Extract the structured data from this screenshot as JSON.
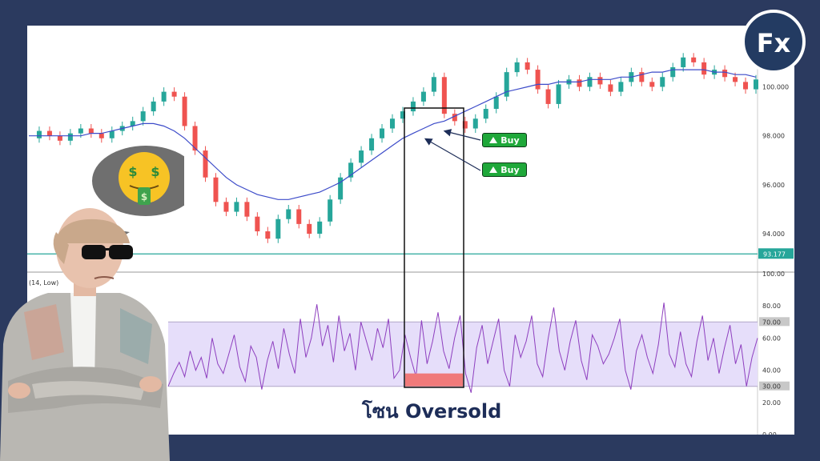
{
  "chart_data": [
    {
      "type": "line",
      "panel": "price",
      "title": "",
      "xlabel": "",
      "ylabel": "",
      "ylim": [
        92.5,
        102.5
      ],
      "y_ticks": [
        "100.000",
        "98.000",
        "96.000",
        "94.000"
      ],
      "y_tick_values": [
        100,
        98,
        96,
        94
      ],
      "series": [
        {
          "kind": "candlestick",
          "color_up": "#26a69a",
          "color_down": "#ef5350",
          "values": [
            97.9,
            98.2,
            98.0,
            97.8,
            98.1,
            98.3,
            98.1,
            97.9,
            98.2,
            98.4,
            98.6,
            99.0,
            99.4,
            99.8,
            99.6,
            98.4,
            97.4,
            96.3,
            95.3,
            94.9,
            95.3,
            94.7,
            94.1,
            93.8,
            94.6,
            95.0,
            94.4,
            94.0,
            94.5,
            95.4,
            96.3,
            96.9,
            97.4,
            97.9,
            98.3,
            98.7,
            99.0,
            99.4,
            99.8,
            100.4,
            98.9,
            98.6,
            98.3,
            98.7,
            99.1,
            99.6,
            100.6,
            101.0,
            100.7,
            99.9,
            99.3,
            100.1,
            100.3,
            100.0,
            100.4,
            100.1,
            99.8,
            100.2,
            100.6,
            100.2,
            100.0,
            100.4,
            100.8,
            101.2,
            101.0,
            100.5,
            100.7,
            100.4,
            100.2,
            99.9,
            100.3
          ]
        },
        {
          "kind": "moving-average",
          "color": "#3c4bc9",
          "values": [
            98.0,
            98.0,
            98.0,
            98.0,
            98.0,
            98.0,
            98.1,
            98.1,
            98.2,
            98.3,
            98.4,
            98.5,
            98.5,
            98.4,
            98.2,
            97.9,
            97.5,
            97.1,
            96.7,
            96.3,
            96.0,
            95.8,
            95.6,
            95.5,
            95.4,
            95.4,
            95.5,
            95.6,
            95.7,
            95.9,
            96.1,
            96.4,
            96.7,
            97.0,
            97.3,
            97.6,
            97.9,
            98.1,
            98.3,
            98.5,
            98.6,
            98.8,
            99.0,
            99.2,
            99.4,
            99.6,
            99.8,
            99.9,
            100.0,
            100.1,
            100.1,
            100.2,
            100.2,
            100.2,
            100.3,
            100.3,
            100.3,
            100.4,
            100.4,
            100.5,
            100.6,
            100.6,
            100.7,
            100.7,
            100.7,
            100.7,
            100.6,
            100.6,
            100.5,
            100.5,
            100.4
          ]
        }
      ],
      "horizontal_line": {
        "value": 93.177,
        "label": "93.177",
        "color": "#26a69a"
      }
    },
    {
      "type": "line",
      "panel": "indicator",
      "title": "",
      "header_label": "(14, Low)",
      "xlabel": "",
      "ylabel": "",
      "ylim": [
        0,
        100
      ],
      "y_ticks": [
        "100.00",
        "80.00",
        "60.00",
        "40.00",
        "20.00",
        "0.00"
      ],
      "y_tick_values": [
        100,
        80,
        60,
        40,
        20,
        0
      ],
      "band": {
        "low": 30,
        "high": 70,
        "low_label": "30.00",
        "high_label": "70.00",
        "color": "#e6defa"
      },
      "series": [
        {
          "color": "#8e3fbf",
          "values": [
            30,
            38,
            45,
            36,
            52,
            40,
            48,
            35,
            60,
            44,
            38,
            50,
            62,
            42,
            33,
            55,
            48,
            28,
            46,
            58,
            41,
            66,
            50,
            38,
            72,
            48,
            60,
            81,
            55,
            68,
            45,
            74,
            52,
            63,
            40,
            70,
            58,
            46,
            66,
            54,
            72,
            35,
            40,
            62,
            48,
            36,
            71,
            44,
            58,
            76,
            52,
            41,
            60,
            74,
            38,
            26,
            54,
            68,
            44,
            58,
            72,
            40,
            30,
            62,
            48,
            58,
            74,
            44,
            36,
            60,
            79,
            52,
            40,
            58,
            71,
            46,
            34,
            62,
            55,
            44,
            50,
            60,
            72,
            40,
            28,
            52,
            62,
            48,
            38,
            56,
            82,
            50,
            42,
            64,
            44,
            36,
            58,
            74,
            46,
            60,
            38,
            54,
            68,
            44,
            56,
            30,
            48,
            60
          ]
        }
      ]
    }
  ],
  "oversold_zone": {
    "caption": "โซน Oversold"
  },
  "buy_signals": [
    {
      "label": "Buy"
    },
    {
      "label": "Buy"
    }
  ],
  "logo": {
    "text": "Fx",
    "bg_color": "#233b62"
  },
  "speech_emoji": {
    "icon": "money-mouth-face-icon"
  }
}
